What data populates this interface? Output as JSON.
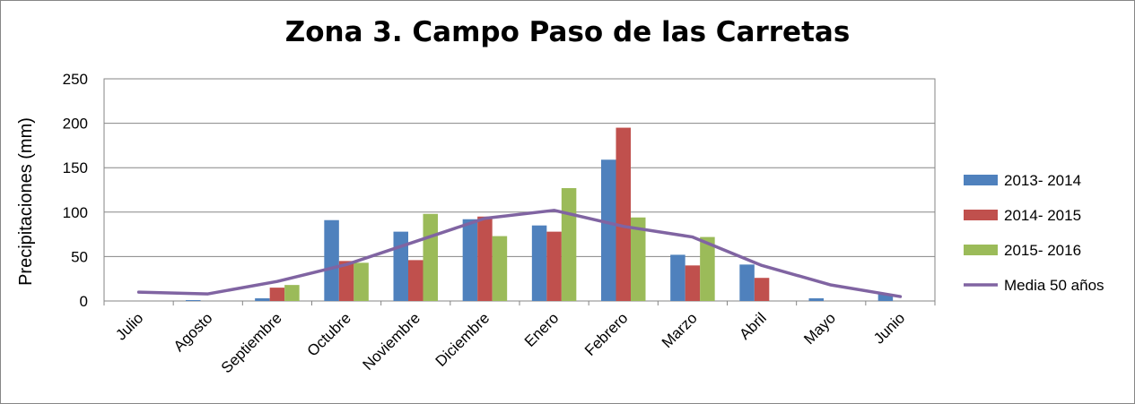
{
  "chart_data": {
    "type": "bar",
    "title": "Zona 3. Campo Paso de las Carretas",
    "xlabel": "",
    "ylabel": "Precipitaciones (mm)",
    "ylim": [
      0,
      250
    ],
    "yticks": [
      0,
      50,
      100,
      150,
      200,
      250
    ],
    "grid": true,
    "legend_position": "right",
    "categories": [
      "Julio",
      "Agosto",
      "Septiembre",
      "Octubre",
      "Noviembre",
      "Diciembre",
      "Enero",
      "Febrero",
      "Marzo",
      "Abril",
      "Mayo",
      "Junio"
    ],
    "series": [
      {
        "name": "2013- 2014",
        "type": "bar",
        "color": "#4F81BD",
        "values": [
          0,
          1,
          3,
          91,
          78,
          92,
          85,
          159,
          52,
          41,
          3,
          8
        ]
      },
      {
        "name": "2014- 2015",
        "type": "bar",
        "color": "#C0504D",
        "values": [
          0,
          0,
          15,
          45,
          46,
          95,
          78,
          195,
          40,
          26,
          0,
          0
        ]
      },
      {
        "name": "2015- 2016",
        "type": "bar",
        "color": "#9BBB59",
        "values": [
          0,
          0,
          18,
          43,
          98,
          73,
          127,
          94,
          72,
          0,
          0,
          0
        ]
      },
      {
        "name": "Media 50 años",
        "type": "line",
        "color": "#8064A2",
        "values": [
          10,
          8,
          22,
          41,
          67,
          93,
          102,
          84,
          72,
          40,
          18,
          5
        ]
      }
    ]
  }
}
